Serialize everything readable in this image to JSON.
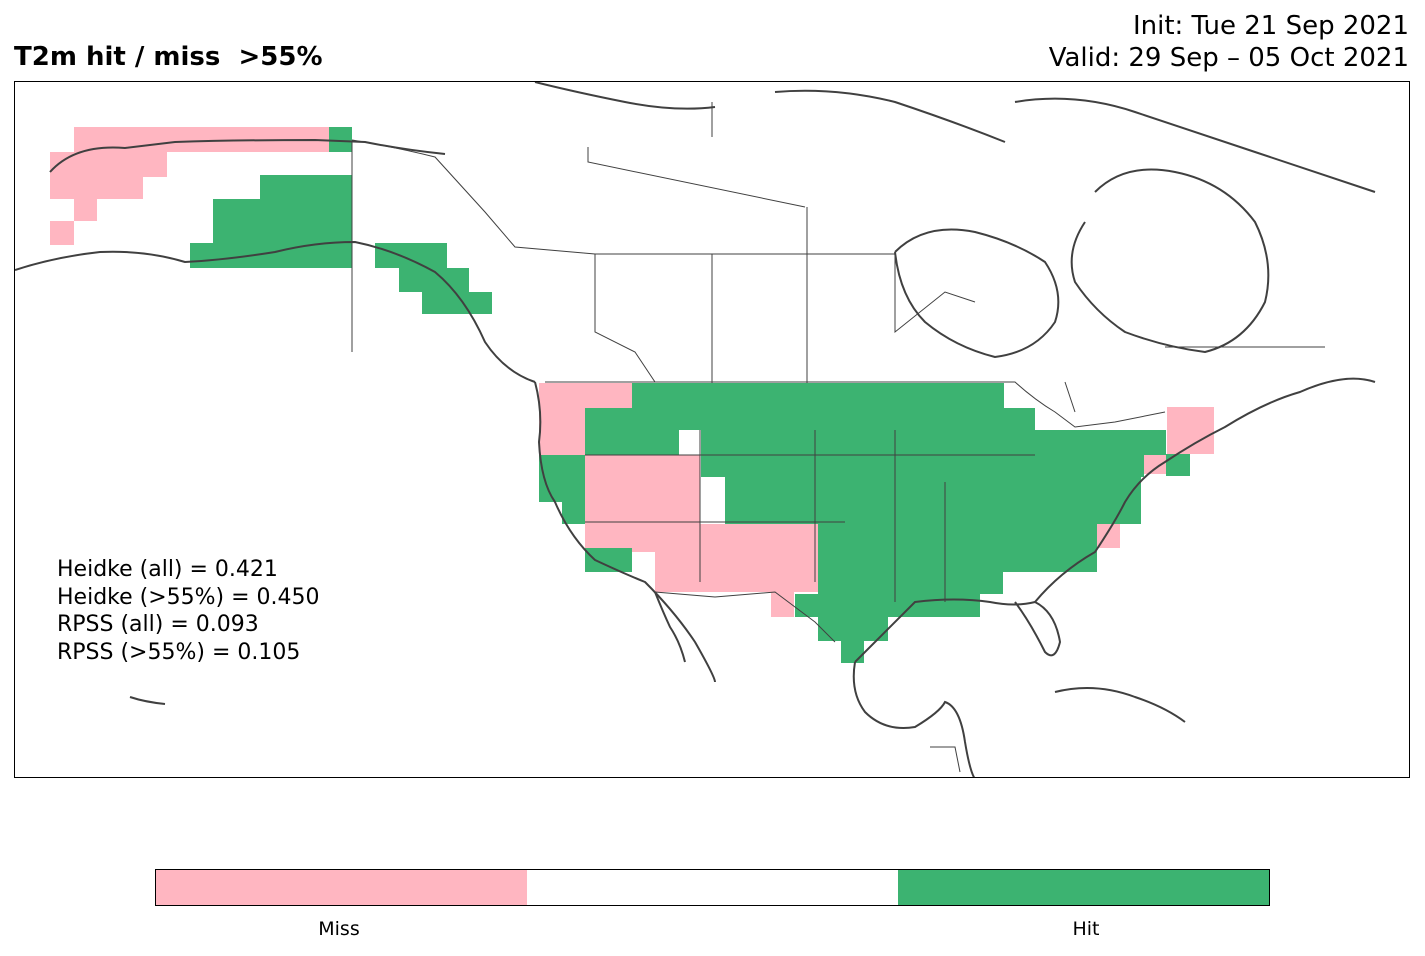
{
  "title": "T2m hit / miss  >55%",
  "init": "Init: Tue 21 Sep 2021",
  "valid": "Valid: 29 Sep – 05 Oct 2021",
  "stats": [
    "Heidke (all) = 0.421",
    "Heidke (>55%) = 0.450",
    "RPSS (all) = 0.093",
    "RPSS (>55%) = 0.105"
  ],
  "colors": {
    "miss": "#ffb6c1",
    "hit": "#3cb371",
    "neutral": "#ffffff",
    "coast": "#404040"
  },
  "colorbar": {
    "miss_label": "Miss",
    "hit_label": "Hit"
  },
  "map_cells": {
    "miss": [
      "Alaska northwest and Seward Peninsula",
      "Pacific Northwest coast (Washington, Oregon)",
      "Nevada and Utah",
      "Arizona and New Mexico",
      "Southern California coast",
      "Western Texas",
      "Maine",
      "Southern New England",
      "Delmarva"
    ],
    "hit": [
      "Interior and southern Alaska",
      "Alaska panhandle",
      "Northern Rockies (Idaho, Montana)",
      "Great Plains",
      "Midwest and Great Lakes",
      "Texas",
      "Southeast and Gulf coast",
      "Mid-Atlantic",
      "New York and northern New England",
      "California coast (north)"
    ]
  }
}
